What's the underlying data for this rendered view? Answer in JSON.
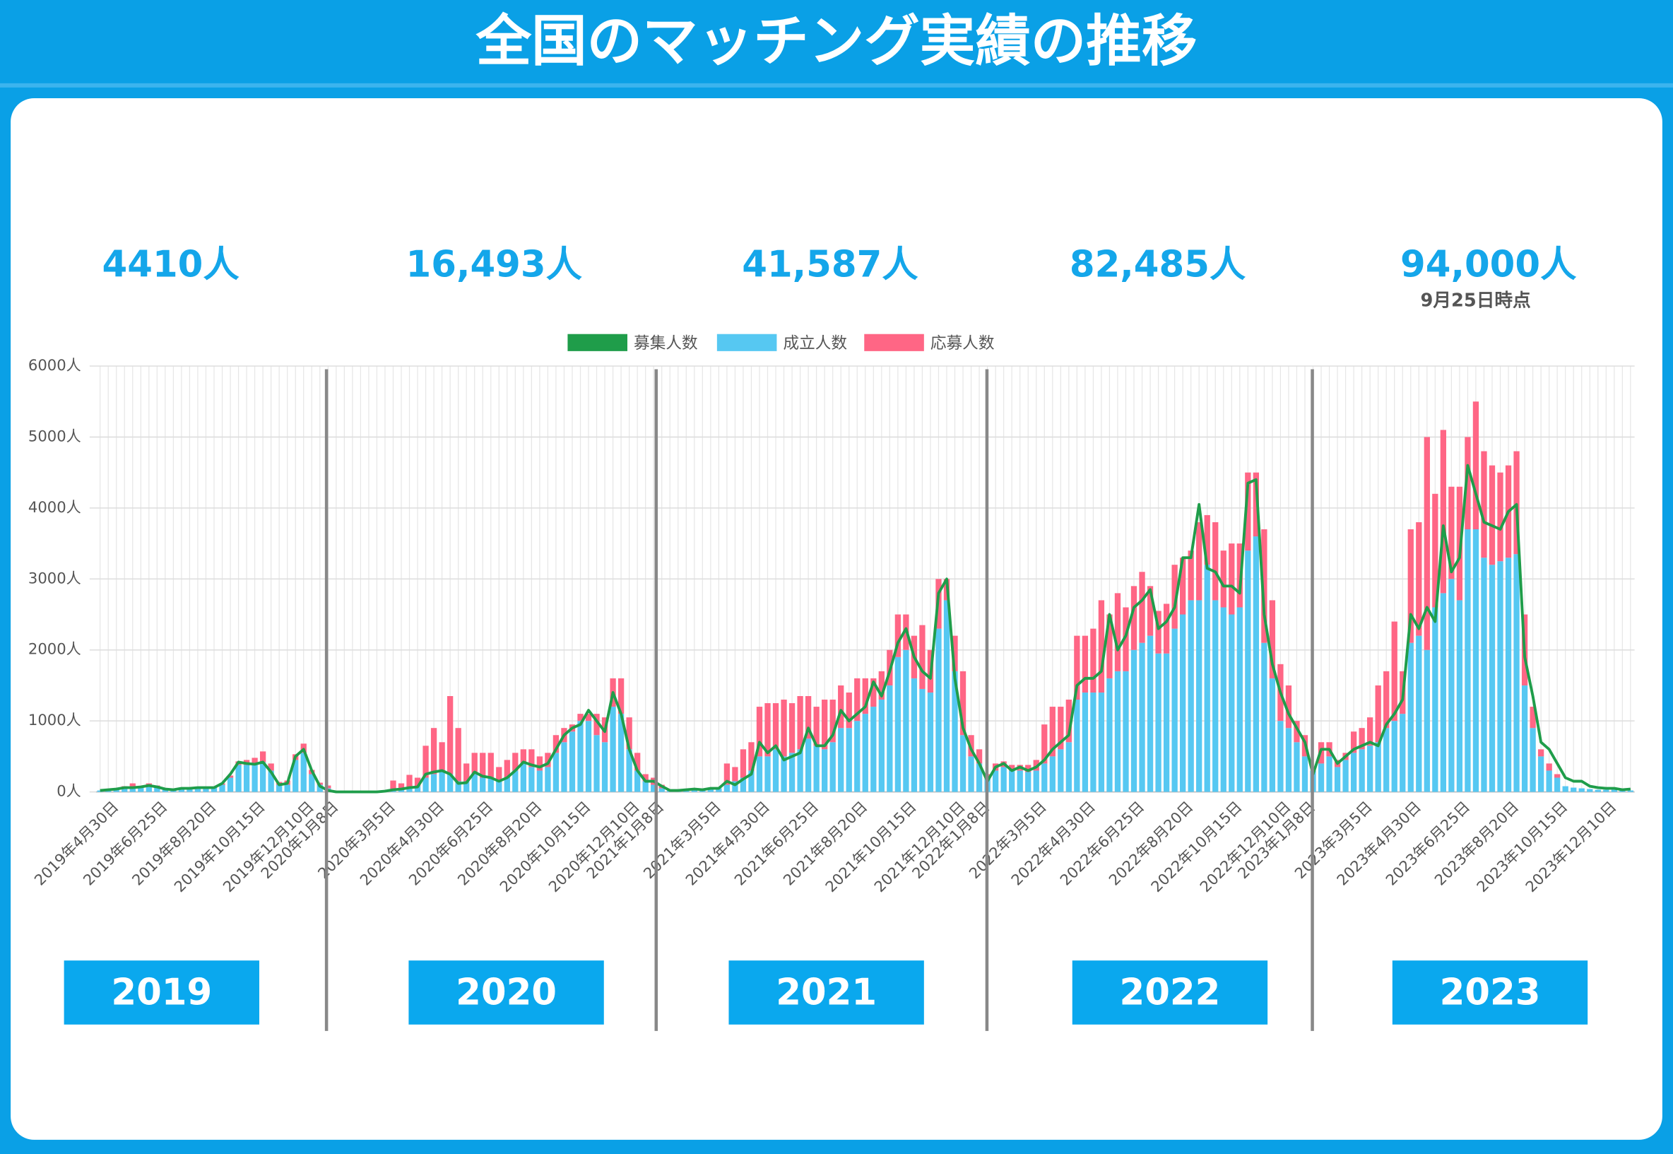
{
  "header": {
    "title": "全国のマッチング実績の推移"
  },
  "summary": [
    {
      "total": "4410人",
      "year": "2019"
    },
    {
      "total": "16,493人",
      "year": "2020"
    },
    {
      "total": "41,587人",
      "year": "2021"
    },
    {
      "total": "82,485人",
      "year": "2022"
    },
    {
      "total": "94,000人",
      "year": "2023",
      "note": "9月25日時点"
    }
  ],
  "chart_data": {
    "type": "bar",
    "stacked": true,
    "grid": true,
    "legend": "top",
    "ylim": [
      0,
      6000
    ],
    "yticks": [
      {
        "value": 0,
        "label": "0人"
      },
      {
        "value": 1000,
        "label": "1000人"
      },
      {
        "value": 2000,
        "label": "2000人"
      },
      {
        "value": 3000,
        "label": "3000人"
      },
      {
        "value": 4000,
        "label": "4000人"
      },
      {
        "value": 5000,
        "label": "5000人"
      },
      {
        "value": 6000,
        "label": "6000人"
      }
    ],
    "categories": [
      null,
      null,
      "2019年4月30日",
      null,
      null,
      null,
      null,
      null,
      "2019年6月25日",
      null,
      null,
      null,
      null,
      null,
      "2019年8月20日",
      null,
      null,
      null,
      null,
      null,
      "2019年10月15日",
      null,
      null,
      null,
      null,
      null,
      "2019年12月10日",
      null,
      null,
      "2020年1月8日",
      null,
      null,
      null,
      null,
      null,
      null,
      "2020年3月5日",
      null,
      null,
      null,
      null,
      null,
      "2020年4月30日",
      null,
      null,
      null,
      null,
      null,
      "2020年6月25日",
      null,
      null,
      null,
      null,
      null,
      "2020年8月20日",
      null,
      null,
      null,
      null,
      null,
      "2020年10月15日",
      null,
      null,
      null,
      null,
      null,
      "2020年12月10日",
      null,
      null,
      "2021年1月8日",
      null,
      null,
      null,
      null,
      null,
      null,
      "2021年3月5日",
      null,
      null,
      null,
      null,
      null,
      "2021年4月30日",
      null,
      null,
      null,
      null,
      null,
      "2021年6月25日",
      null,
      null,
      null,
      null,
      null,
      "2021年8月20日",
      null,
      null,
      null,
      null,
      null,
      "2021年10月15日",
      null,
      null,
      null,
      null,
      null,
      "2021年12月10日",
      null,
      null,
      "2022年1月8日",
      null,
      null,
      null,
      null,
      null,
      null,
      "2022年3月5日",
      null,
      null,
      null,
      null,
      null,
      "2022年4月30日",
      null,
      null,
      null,
      null,
      null,
      "2022年6月25日",
      null,
      null,
      null,
      null,
      null,
      "2022年8月20日",
      null,
      null,
      null,
      null,
      null,
      "2022年10月15日",
      null,
      null,
      null,
      null,
      null,
      "2022年12月10日",
      null,
      null,
      "2023年1月8日",
      null,
      null,
      null,
      null,
      null,
      null,
      "2023年3月5日",
      null,
      null,
      null,
      null,
      null,
      "2023年4月30日",
      null,
      null,
      null,
      null,
      null,
      "2023年6月25日",
      null,
      null,
      null,
      null,
      null,
      "2023年8月20日",
      null,
      null,
      null,
      null,
      null,
      "2023年10月15日",
      null,
      null,
      null,
      null,
      null,
      "2023年12月10日",
      null,
      null
    ],
    "series": [
      {
        "name": "募集人数",
        "type": "line",
        "color": "#1f9d4a",
        "values": [
          20,
          30,
          40,
          60,
          60,
          70,
          90,
          70,
          40,
          30,
          50,
          50,
          60,
          60,
          60,
          120,
          250,
          420,
          400,
          390,
          420,
          280,
          100,
          120,
          500,
          600,
          300,
          80,
          20,
          0,
          0,
          0,
          0,
          0,
          0,
          10,
          30,
          40,
          60,
          70,
          250,
          280,
          300,
          250,
          120,
          130,
          280,
          220,
          200,
          150,
          200,
          300,
          420,
          380,
          350,
          400,
          600,
          800,
          900,
          950,
          1150,
          1000,
          850,
          1400,
          1100,
          600,
          300,
          150,
          150,
          80,
          20,
          20,
          30,
          40,
          30,
          50,
          50,
          150,
          100,
          180,
          250,
          700,
          550,
          650,
          450,
          500,
          550,
          900,
          650,
          650,
          800,
          1150,
          1000,
          1100,
          1200,
          1550,
          1350,
          1700,
          2100,
          2300,
          1900,
          1700,
          1600,
          2800,
          3000,
          1600,
          900,
          600,
          400,
          150,
          350,
          400,
          300,
          350,
          300,
          350,
          450,
          600,
          700,
          800,
          1500,
          1600,
          1600,
          1700,
          2500,
          2000,
          2200,
          2600,
          2700,
          2850,
          2300,
          2400,
          2600,
          3300,
          3300,
          4050,
          3150,
          3100,
          2900,
          2900,
          2800,
          4350,
          4400,
          2500,
          1800,
          1400,
          1100,
          900,
          700,
          250,
          600,
          600,
          400,
          500,
          600,
          650,
          700,
          650,
          950,
          1100,
          1300,
          2500,
          2300,
          2600,
          2400,
          3750,
          3100,
          3300,
          4600,
          4200,
          3800,
          3750,
          3700,
          3950,
          4050,
          1900,
          1350,
          700,
          600,
          400,
          200,
          150,
          150,
          80,
          60,
          50,
          50,
          30,
          40
        ]
      },
      {
        "name": "成立人数",
        "color": "#56c8f2",
        "values": [
          20,
          30,
          40,
          50,
          70,
          60,
          80,
          60,
          40,
          20,
          40,
          50,
          50,
          60,
          60,
          100,
          200,
          380,
          380,
          400,
          420,
          300,
          100,
          100,
          450,
          550,
          250,
          100,
          50,
          0,
          0,
          0,
          0,
          0,
          0,
          10,
          30,
          40,
          60,
          80,
          200,
          250,
          300,
          250,
          150,
          150,
          250,
          200,
          200,
          150,
          200,
          300,
          400,
          350,
          300,
          350,
          550,
          700,
          850,
          1000,
          1000,
          800,
          700,
          1200,
          1100,
          600,
          300,
          150,
          100,
          50,
          20,
          20,
          30,
          40,
          30,
          50,
          50,
          100,
          150,
          200,
          300,
          500,
          500,
          600,
          500,
          550,
          600,
          750,
          650,
          600,
          700,
          900,
          900,
          1000,
          1100,
          1200,
          1300,
          1500,
          1900,
          2000,
          1600,
          1450,
          1400,
          2300,
          2700,
          1700,
          800,
          500,
          400,
          200,
          300,
          350,
          300,
          300,
          280,
          300,
          400,
          500,
          600,
          700,
          1300,
          1400,
          1400,
          1400,
          1600,
          1700,
          1700,
          2000,
          2100,
          2200,
          1950,
          1950,
          2300,
          2500,
          2700,
          2700,
          3200,
          2700,
          2600,
          2500,
          2600,
          3400,
          3600,
          2100,
          1600,
          1000,
          900,
          700,
          500,
          300,
          400,
          500,
          350,
          450,
          550,
          600,
          650,
          700,
          900,
          1000,
          1100,
          2100,
          2200,
          2000,
          2600,
          2800,
          3000,
          2700,
          3700,
          3700,
          3300,
          3200,
          3250,
          3300,
          3350,
          1500,
          900,
          500,
          300,
          200,
          80,
          60,
          50,
          40,
          30,
          30,
          30,
          20,
          20
        ]
      },
      {
        "name": "応募人数",
        "color": "#ff6685",
        "values": [
          0,
          10,
          10,
          30,
          50,
          20,
          40,
          30,
          10,
          10,
          10,
          10,
          10,
          10,
          10,
          20,
          30,
          50,
          70,
          80,
          150,
          100,
          40,
          60,
          80,
          130,
          60,
          30,
          40,
          0,
          0,
          0,
          0,
          0,
          0,
          10,
          130,
          80,
          180,
          120,
          450,
          650,
          400,
          1100,
          750,
          250,
          300,
          350,
          350,
          200,
          250,
          250,
          200,
          250,
          200,
          200,
          250,
          200,
          100,
          100,
          100,
          300,
          350,
          400,
          500,
          450,
          250,
          100,
          100,
          50,
          0,
          0,
          0,
          0,
          0,
          0,
          0,
          300,
          200,
          400,
          400,
          700,
          750,
          650,
          800,
          700,
          750,
          600,
          550,
          700,
          600,
          600,
          500,
          600,
          500,
          400,
          400,
          500,
          600,
          500,
          600,
          900,
          600,
          700,
          300,
          500,
          900,
          300,
          200,
          50,
          100,
          80,
          80,
          80,
          100,
          150,
          550,
          700,
          600,
          600,
          900,
          800,
          900,
          1300,
          900,
          1100,
          900,
          900,
          1000,
          700,
          600,
          700,
          900,
          800,
          700,
          1100,
          700,
          1100,
          800,
          1000,
          900,
          1100,
          900,
          1600,
          1100,
          800,
          600,
          300,
          300,
          0,
          300,
          200,
          100,
          100,
          300,
          300,
          400,
          800,
          800,
          1400,
          600,
          1600,
          1600,
          3000,
          1600,
          2300,
          1300,
          1600,
          1300,
          1800,
          1500,
          1400,
          1250,
          1300,
          1450,
          1000,
          300,
          100,
          100,
          50,
          0,
          0,
          0,
          0,
          0,
          0,
          0,
          0,
          0
        ]
      }
    ]
  }
}
